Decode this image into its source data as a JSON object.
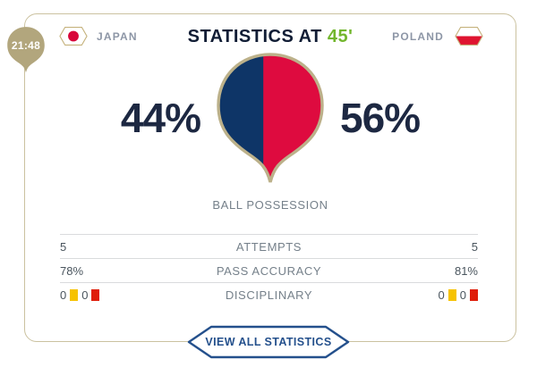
{
  "colors": {
    "home_navy": "#0e3567",
    "away_red": "#de0b3f",
    "accent_green": "#72b62d",
    "badge_tan": "#b2a67d",
    "card_border_tan": "#cbc2a0",
    "button_navy": "#24508c",
    "yellow_card": "#f6c200",
    "red_card": "#df1d0a"
  },
  "timeline": {
    "time": "21:48"
  },
  "header": {
    "home_team": "JAPAN",
    "away_team": "POLAND",
    "title": "STATISTICS AT",
    "minute": "45'"
  },
  "possession": {
    "label": "BALL POSSESSION",
    "home": "44%",
    "away": "56%",
    "home_value": 44,
    "away_value": 56
  },
  "stats": {
    "rows": [
      {
        "label": "ATTEMPTS",
        "home": "5",
        "away": "5"
      },
      {
        "label": "PASS ACCURACY",
        "home": "78%",
        "away": "81%"
      },
      {
        "label": "DISCIPLINARY",
        "home_yellow": "0",
        "home_red": "0",
        "away_yellow": "0",
        "away_red": "0"
      }
    ]
  },
  "footer": {
    "view_all_label": "VIEW ALL STATISTICS"
  }
}
